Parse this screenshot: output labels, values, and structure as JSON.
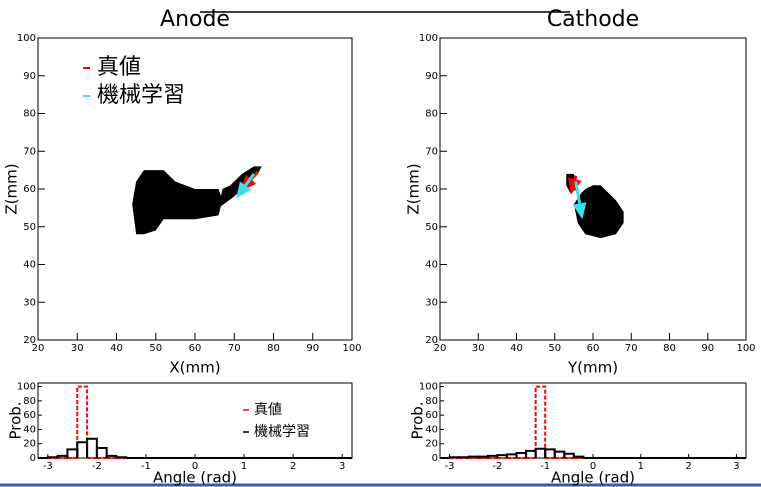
{
  "chart_data": [
    {
      "type": "map",
      "title": "Anode",
      "xlabel": "X(mm)",
      "ylabel": "Z(mm)",
      "xlim": [
        20,
        100
      ],
      "ylim": [
        20,
        100
      ],
      "xticks": [
        20,
        30,
        40,
        50,
        60,
        70,
        80,
        90,
        100
      ],
      "yticks": [
        20,
        30,
        40,
        50,
        60,
        70,
        80,
        90,
        100
      ],
      "regions": [
        {
          "color": "#000000",
          "x": [
            45,
            47,
            50,
            52,
            60,
            66,
            67,
            66,
            60,
            55,
            52,
            47,
            45,
            44
          ],
          "y": [
            48,
            48,
            49,
            52,
            52,
            53,
            57,
            60,
            60,
            62,
            65,
            65,
            62,
            56
          ]
        },
        {
          "color": "#000000",
          "x": [
            66,
            70,
            73,
            76,
            77,
            75,
            72,
            69,
            67
          ],
          "y": [
            55,
            58,
            61,
            64,
            66,
            66,
            64,
            61,
            60
          ]
        }
      ],
      "arrows": [
        {
          "name": "真値",
          "color": "#ff0000",
          "x": [
            76,
            71.5
          ],
          "y": [
            64.5,
            59.5
          ]
        },
        {
          "name": "機械学習",
          "color": "#33e3ee",
          "x": [
            75,
            70.5
          ],
          "y": [
            64,
            57.5
          ]
        }
      ],
      "legend": "upper left"
    },
    {
      "type": "map",
      "title": "Cathode",
      "xlabel": "Y(mm)",
      "ylabel": "Z(mm)",
      "xlim": [
        20,
        100
      ],
      "ylim": [
        20,
        100
      ],
      "xticks": [
        20,
        30,
        40,
        50,
        60,
        70,
        80,
        90,
        100
      ],
      "yticks": [
        20,
        30,
        40,
        50,
        60,
        70,
        80,
        90,
        100
      ],
      "regions": [
        {
          "color": "#000000",
          "x": [
            58,
            60,
            62,
            64,
            66,
            68,
            68,
            66,
            62,
            58,
            56,
            55,
            57
          ],
          "y": [
            60,
            61,
            61,
            59,
            57,
            54,
            51,
            48,
            47,
            48,
            51,
            56,
            59
          ]
        },
        {
          "color": "#000000",
          "x": [
            53,
            55,
            56,
            54,
            53
          ],
          "y": [
            64,
            64,
            60,
            59,
            61
          ]
        }
      ],
      "arrows": [
        {
          "color": "#ff0000",
          "x": [
            55.5,
            54.2
          ],
          "y": [
            63.5,
            58.5
          ]
        },
        {
          "color": "#33e3ee",
          "x": [
            55.5,
            57.2
          ],
          "y": [
            62,
            52
          ]
        }
      ]
    },
    {
      "type": "histogram",
      "xlabel": "Angle (rad)",
      "ylabel": "Prob.",
      "xlim": [
        -3.2,
        3.2
      ],
      "ylim": [
        0,
        105
      ],
      "xticks": [
        -3,
        -2,
        -1,
        0,
        1,
        2,
        3
      ],
      "yticks": [
        0,
        20,
        40,
        60,
        80,
        100
      ],
      "bins": [
        -3.2,
        -3.0,
        -2.8,
        -2.6,
        -2.4,
        -2.2,
        -2.0,
        -1.8,
        -1.6,
        -1.4,
        -1.2,
        -1.0,
        -0.8,
        -0.6,
        -0.4,
        -0.2,
        0,
        0.2,
        0.4,
        0.6,
        0.8,
        1.0,
        1.2,
        1.4,
        1.6,
        1.8,
        2.0,
        2.2,
        2.4,
        2.6,
        2.8,
        3.0,
        3.2
      ],
      "series": [
        {
          "name": "真値",
          "color": "#ff0000",
          "dashed": true,
          "values": [
            0,
            0,
            0,
            0,
            100,
            0,
            0,
            0,
            0,
            0,
            0,
            0,
            0,
            0,
            0,
            0,
            0,
            0,
            0,
            0,
            0,
            0,
            0,
            0,
            0,
            0,
            0,
            0,
            0,
            0,
            0,
            0
          ]
        },
        {
          "name": "機械学習",
          "color": "#000000",
          "values": [
            0,
            1,
            3,
            12,
            22,
            27,
            14,
            3,
            1,
            0,
            0,
            0,
            0,
            0,
            0,
            0,
            0,
            0,
            0,
            0,
            0,
            0,
            0,
            0,
            0,
            0,
            0,
            0,
            0,
            0,
            0,
            0
          ]
        }
      ],
      "legend": "upper right"
    },
    {
      "type": "histogram",
      "xlabel": "Angle (rad)",
      "ylabel": "Prob.",
      "xlim": [
        -3.2,
        3.2
      ],
      "ylim": [
        0,
        105
      ],
      "xticks": [
        -3,
        -2,
        -1,
        0,
        1,
        2,
        3
      ],
      "yticks": [
        0,
        20,
        40,
        60,
        80,
        100
      ],
      "bins": [
        -3.2,
        -3.0,
        -2.8,
        -2.6,
        -2.4,
        -2.2,
        -2.0,
        -1.8,
        -1.6,
        -1.4,
        -1.2,
        -1.0,
        -0.8,
        -0.6,
        -0.4,
        -0.2,
        0,
        0.2,
        0.4,
        0.6,
        0.8,
        1.0,
        1.2,
        1.4,
        1.6,
        1.8,
        2.0,
        2.2,
        2.4,
        2.6,
        2.8,
        3.0,
        3.2
      ],
      "series": [
        {
          "color": "#ff0000",
          "dashed": true,
          "values": [
            0,
            0,
            0,
            0,
            0,
            0,
            0,
            0,
            0,
            0,
            100,
            0,
            0,
            0,
            0,
            0,
            0,
            0,
            0,
            0,
            0,
            0,
            0,
            0,
            0,
            0,
            0,
            0,
            0,
            0,
            0,
            0
          ]
        },
        {
          "color": "#000000",
          "values": [
            0,
            1,
            1,
            2,
            2,
            3,
            4,
            5,
            7,
            10,
            13,
            12,
            9,
            6,
            2,
            0,
            0,
            0,
            0,
            0,
            0,
            0,
            0,
            0,
            0,
            0,
            0,
            0,
            0,
            0,
            0,
            0
          ]
        }
      ]
    }
  ]
}
